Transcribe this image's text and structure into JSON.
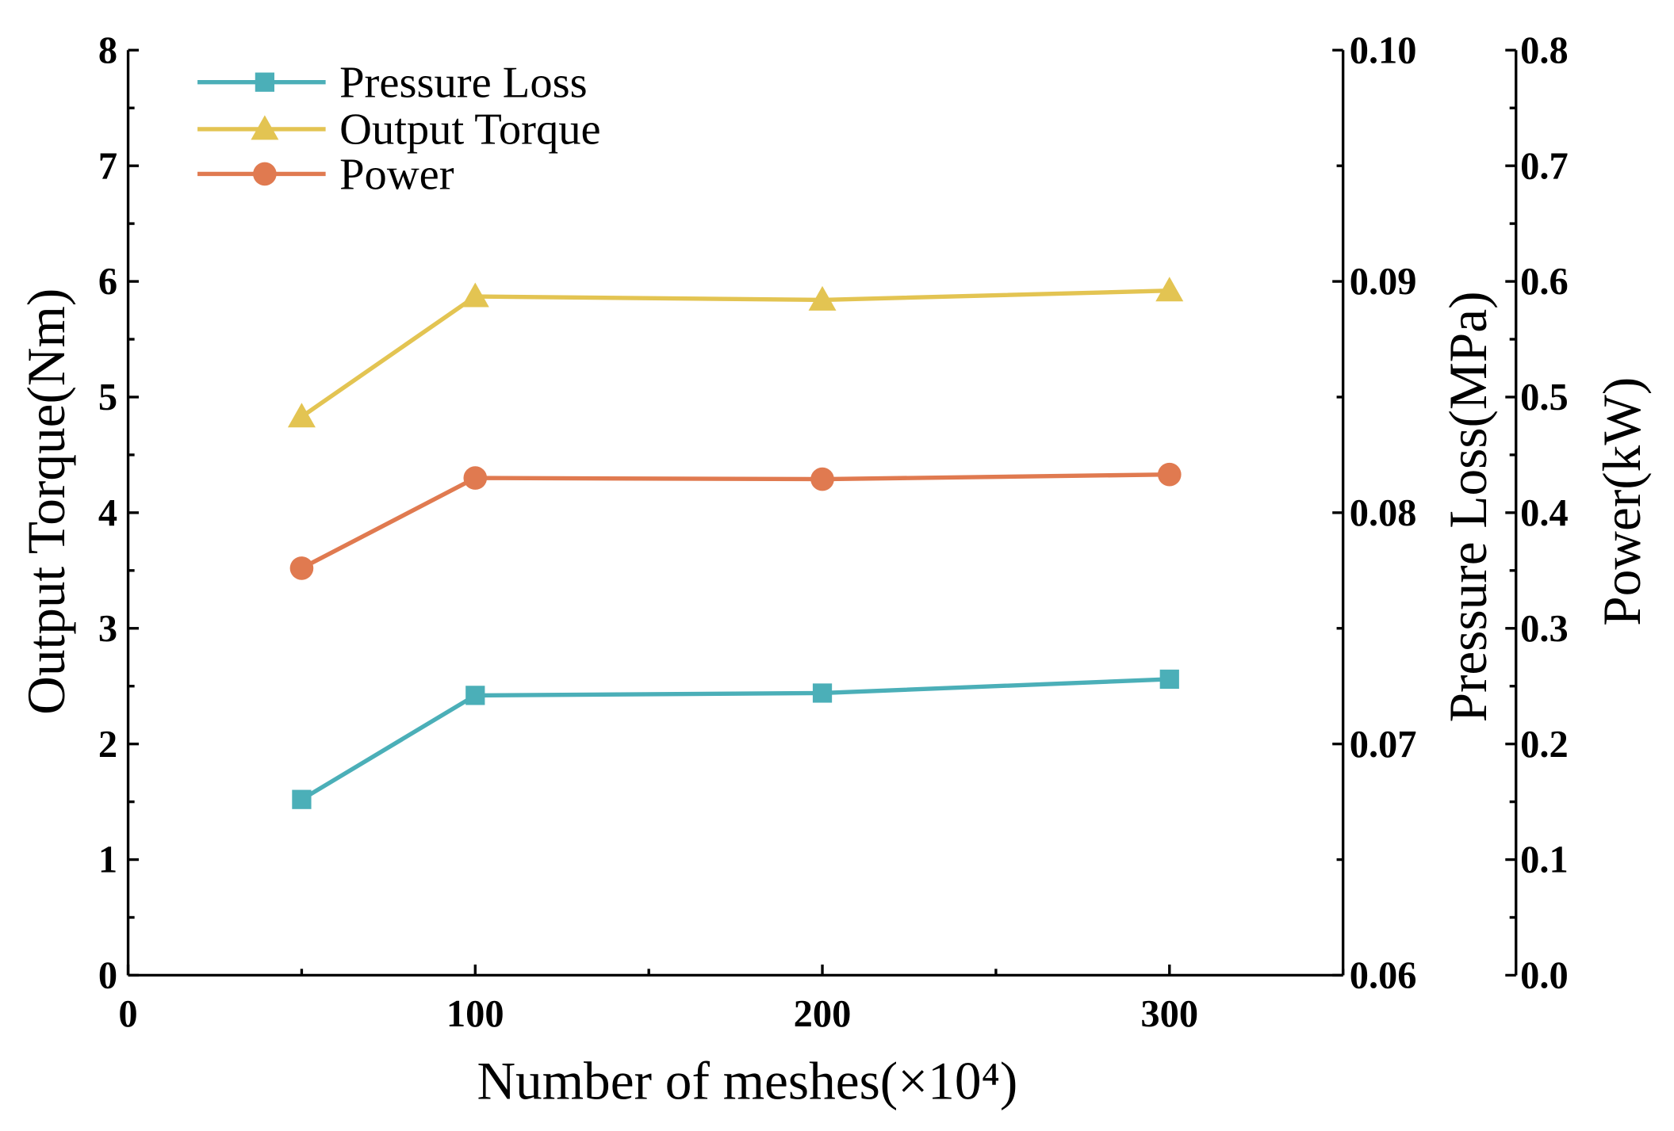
{
  "chart_data": {
    "type": "line",
    "title": "",
    "xlabel": "Number of meshes(×10⁴)",
    "xlim": [
      0,
      350
    ],
    "x_ticks": [
      "0",
      "100",
      "200",
      "300"
    ],
    "x": [
      50,
      100,
      200,
      300
    ],
    "axes": {
      "left": {
        "label": "Output Torque(Nm)",
        "ylim": [
          0,
          8
        ],
        "ticks": [
          "0",
          "1",
          "2",
          "3",
          "4",
          "5",
          "6",
          "7",
          "8"
        ]
      },
      "right1": {
        "label": "Pressure Loss(MPa)",
        "ylim": [
          0.06,
          0.1
        ],
        "ticks": [
          "0.06",
          "0.07",
          "0.08",
          "0.09",
          "0.10"
        ]
      },
      "right2": {
        "label": "Power(kW)",
        "ylim": [
          0.0,
          0.8
        ],
        "ticks": [
          "0.0",
          "0.1",
          "0.2",
          "0.3",
          "0.4",
          "0.5",
          "0.6",
          "0.7",
          "0.8"
        ]
      }
    },
    "series": [
      {
        "name": "Pressure Loss",
        "axis": "right1",
        "marker": "square",
        "color": "#4BAFB8",
        "values": [
          0.0676,
          0.0721,
          0.0722,
          0.0728
        ]
      },
      {
        "name": "Output Torque",
        "axis": "left",
        "marker": "triangle",
        "color": "#E3C452",
        "values": [
          4.83,
          5.87,
          5.84,
          5.92
        ]
      },
      {
        "name": "Power",
        "axis": "right2",
        "marker": "circle",
        "color": "#E07A50",
        "values": [
          0.352,
          0.43,
          0.429,
          0.433
        ]
      }
    ],
    "legend_position": "top-left",
    "grid": false
  }
}
